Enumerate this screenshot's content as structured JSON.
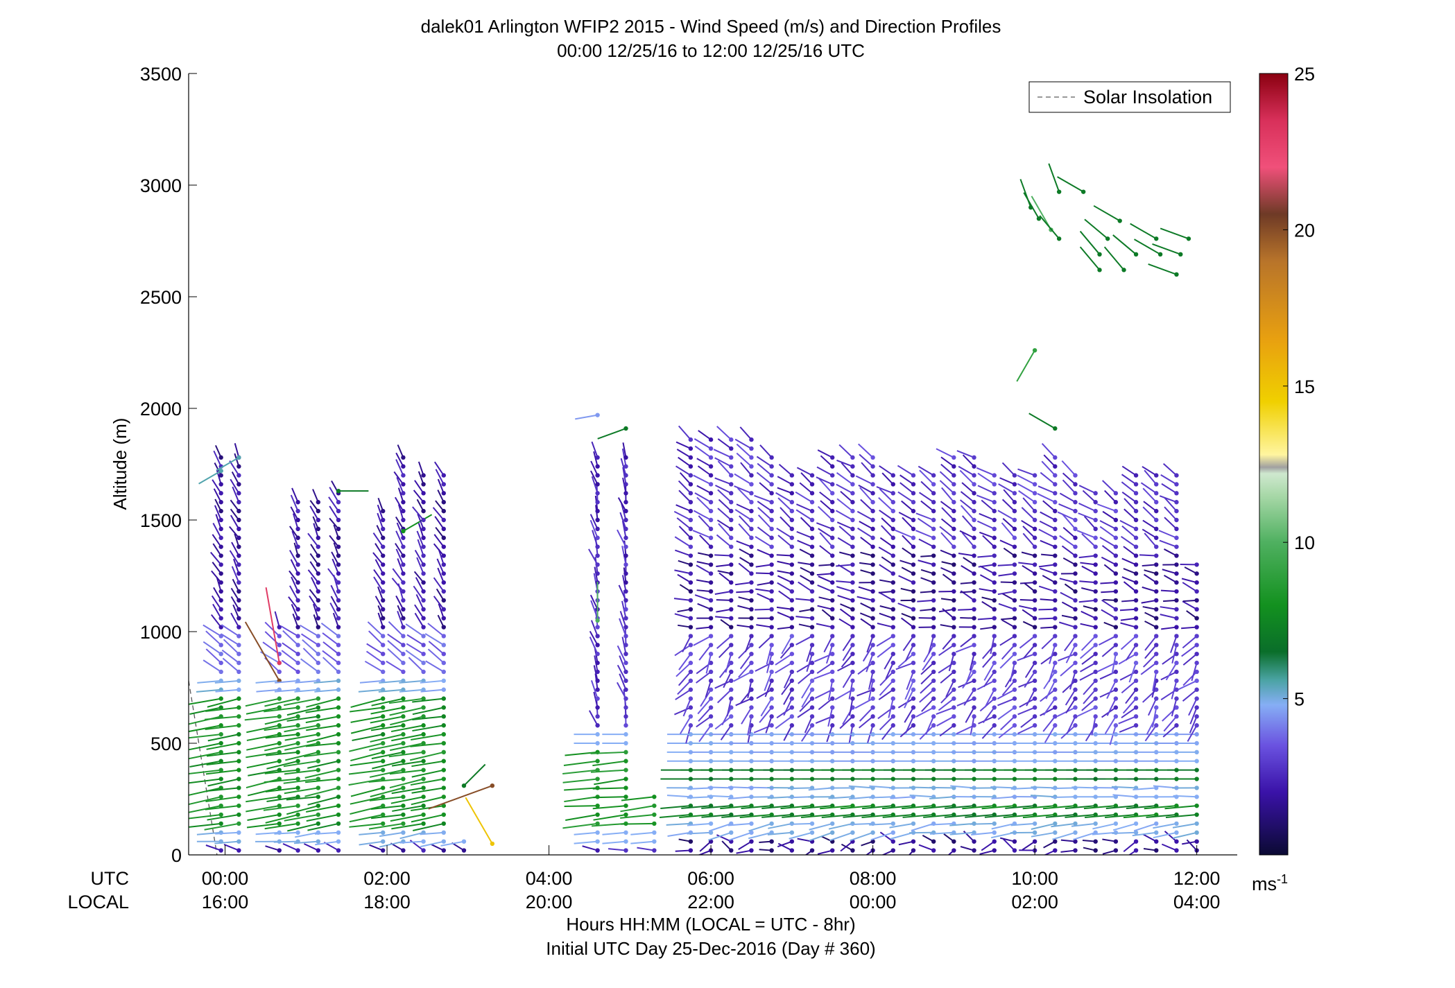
{
  "chart_data": {
    "type": "wind-barb-profile",
    "title": "dalek01 Arlington WFIP2 2015 - Wind Speed (m/s) and Direction Profiles",
    "subtitle": "00:00 12/25/16 to 12:00 12/25/16  UTC",
    "ylabel": "Altitude (m)",
    "xlabel": "Hours HH:MM  (LOCAL = UTC - 8hr)",
    "xlabel2": "Initial UTC Day 25-Dec-2016 (Day # 360)",
    "row_label_utc": "UTC",
    "row_label_local": "LOCAL",
    "xlim_hours": [
      -0.45,
      12.5
    ],
    "ylim": [
      0,
      3500
    ],
    "y_ticks": [
      0,
      500,
      1000,
      1500,
      2000,
      2500,
      3000,
      3500
    ],
    "x_ticks": [
      {
        "hour": 0,
        "utc": "00:00",
        "local": "16:00"
      },
      {
        "hour": 2,
        "utc": "02:00",
        "local": "18:00"
      },
      {
        "hour": 4,
        "utc": "04:00",
        "local": "20:00"
      },
      {
        "hour": 6,
        "utc": "06:00",
        "local": "22:00"
      },
      {
        "hour": 8,
        "utc": "08:00",
        "local": "00:00"
      },
      {
        "hour": 10,
        "utc": "10:00",
        "local": "02:00"
      },
      {
        "hour": 12,
        "utc": "12:00",
        "local": "04:00"
      }
    ],
    "legend": {
      "label": "Solar Insolation",
      "placement": "top-right",
      "line_style": "dashed",
      "color": "#777777"
    },
    "solar_insolation": [
      {
        "hour": -0.45,
        "altitude_m": 780
      },
      {
        "hour": -0.1,
        "altitude_m": 0
      }
    ],
    "colorbar": {
      "min": 0,
      "max": 25,
      "ticks": [
        5,
        10,
        15,
        20,
        25
      ],
      "unit": "ms",
      "unit_exp": "-1",
      "stops": [
        {
          "v": 0,
          "color": "#0b0a33"
        },
        {
          "v": 2,
          "color": "#3a12a8"
        },
        {
          "v": 3.5,
          "color": "#6a52e0"
        },
        {
          "v": 4.8,
          "color": "#86aef5"
        },
        {
          "v": 5.6,
          "color": "#4aa3a3"
        },
        {
          "v": 6.5,
          "color": "#0a6e2a"
        },
        {
          "v": 8,
          "color": "#13911f"
        },
        {
          "v": 10,
          "color": "#4fb060"
        },
        {
          "v": 11.5,
          "color": "#a8d8a8"
        },
        {
          "v": 12.2,
          "color": "#cfe8cf"
        },
        {
          "v": 12.4,
          "color": "#a0a0a0"
        },
        {
          "v": 12.8,
          "color": "#fff5a0"
        },
        {
          "v": 14.5,
          "color": "#f0d000"
        },
        {
          "v": 16.5,
          "color": "#e8a010"
        },
        {
          "v": 19,
          "color": "#b8742a"
        },
        {
          "v": 20.5,
          "color": "#6e3a26"
        },
        {
          "v": 22,
          "color": "#f0507a"
        },
        {
          "v": 23.5,
          "color": "#d8305a"
        },
        {
          "v": 25,
          "color": "#8a0010"
        }
      ]
    },
    "profiles": [
      {
        "hour": -0.05,
        "top": 1780,
        "regime": "early",
        "extra": [
          {
            "alt": 1720,
            "speed": 5.5,
            "dir": 240
          }
        ]
      },
      {
        "hour": 0.17,
        "top": 1780,
        "regime": "early",
        "extra": [
          {
            "alt": 1780,
            "speed": 5.5,
            "dir": 240
          }
        ]
      },
      {
        "hour": 0.67,
        "top": 1020,
        "regime": "early-short",
        "extra": [
          {
            "alt": 780,
            "speed": 20,
            "dir": 330
          },
          {
            "alt": 860,
            "speed": 23,
            "dir": 350
          }
        ]
      },
      {
        "hour": 0.9,
        "top": 1580,
        "regime": "early"
      },
      {
        "hour": 1.15,
        "top": 1600,
        "regime": "early"
      },
      {
        "hour": 1.4,
        "top": 1640,
        "regime": "early",
        "extra": [
          {
            "alt": 1630,
            "speed": 7,
            "dir": 90
          }
        ]
      },
      {
        "hour": 1.95,
        "top": 1560,
        "regime": "early"
      },
      {
        "hour": 2.2,
        "top": 1780,
        "regime": "early",
        "extra": [
          {
            "alt": 1450,
            "speed": 8,
            "dir": 60
          }
        ]
      },
      {
        "hour": 2.45,
        "top": 1700,
        "regime": "early"
      },
      {
        "hour": 2.7,
        "top": 1700,
        "regime": "early"
      },
      {
        "hour": 2.95,
        "top": 60,
        "regime": "low",
        "extra": [
          {
            "alt": 310,
            "speed": 7,
            "dir": 45
          }
        ]
      },
      {
        "hour": 3.3,
        "top": 0,
        "regime": "low",
        "extra": [
          {
            "alt": 310,
            "speed": 20,
            "dir": 250
          },
          {
            "alt": 50,
            "speed": 15,
            "dir": 330
          }
        ]
      },
      {
        "hour": 4.6,
        "top": 1780,
        "regime": "mid",
        "extra": [
          {
            "alt": 1970,
            "speed": 4.5,
            "dir": 260
          },
          {
            "alt": 1050,
            "speed": 10,
            "dir": 0
          }
        ]
      },
      {
        "hour": 4.95,
        "top": 1780,
        "regime": "mid",
        "extra": [
          {
            "alt": 1910,
            "speed": 7,
            "dir": 250
          }
        ]
      },
      {
        "hour": 5.3,
        "top": 280,
        "regime": "mid-short"
      },
      {
        "hour": 5.75,
        "top": 1860,
        "regime": "late"
      },
      {
        "hour": 6.0,
        "top": 1860,
        "regime": "late"
      },
      {
        "hour": 6.25,
        "top": 1860,
        "regime": "late"
      },
      {
        "hour": 6.5,
        "top": 1860,
        "regime": "late"
      },
      {
        "hour": 6.75,
        "top": 1780,
        "regime": "late"
      },
      {
        "hour": 7.0,
        "top": 1700,
        "regime": "late"
      },
      {
        "hour": 7.25,
        "top": 1700,
        "regime": "late"
      },
      {
        "hour": 7.5,
        "top": 1780,
        "regime": "late"
      },
      {
        "hour": 7.75,
        "top": 1780,
        "regime": "late"
      },
      {
        "hour": 8.0,
        "top": 1780,
        "regime": "late"
      },
      {
        "hour": 8.25,
        "top": 1700,
        "regime": "late"
      },
      {
        "hour": 8.5,
        "top": 1700,
        "regime": "late"
      },
      {
        "hour": 8.75,
        "top": 1700,
        "regime": "late"
      },
      {
        "hour": 9.0,
        "top": 1780,
        "regime": "late"
      },
      {
        "hour": 9.25,
        "top": 1780,
        "regime": "late"
      },
      {
        "hour": 9.5,
        "top": 1700,
        "regime": "late"
      },
      {
        "hour": 9.75,
        "top": 1700,
        "regime": "late"
      },
      {
        "hour": 10.0,
        "top": 1700,
        "regime": "late",
        "extra": [
          {
            "alt": 2260,
            "speed": 9,
            "dir": 210
          }
        ]
      },
      {
        "hour": 10.25,
        "top": 1780,
        "regime": "late",
        "extra": [
          {
            "alt": 1910,
            "speed": 7,
            "dir": 300
          }
        ]
      },
      {
        "hour": 10.5,
        "top": 1700,
        "regime": "late"
      },
      {
        "hour": 10.75,
        "top": 1620,
        "regime": "late"
      },
      {
        "hour": 11.0,
        "top": 1620,
        "regime": "late"
      },
      {
        "hour": 11.25,
        "top": 1700,
        "regime": "late"
      },
      {
        "hour": 11.5,
        "top": 1700,
        "regime": "late"
      },
      {
        "hour": 11.75,
        "top": 1700,
        "regime": "late"
      },
      {
        "hour": 12.0,
        "top": 1300,
        "regime": "late-short"
      }
    ],
    "upper_barbs": [
      {
        "hour": 9.95,
        "alt": 2900,
        "speed": 7,
        "dir": 340
      },
      {
        "hour": 10.05,
        "alt": 2850,
        "speed": 7,
        "dir": 330
      },
      {
        "hour": 10.2,
        "alt": 2800,
        "speed": 10,
        "dir": 330
      },
      {
        "hour": 10.3,
        "alt": 2760,
        "speed": 7,
        "dir": 320
      },
      {
        "hour": 10.3,
        "alt": 2970,
        "speed": 7,
        "dir": 340
      },
      {
        "hour": 10.6,
        "alt": 2970,
        "speed": 7,
        "dir": 300
      },
      {
        "hour": 10.8,
        "alt": 2620,
        "speed": 7,
        "dir": 320
      },
      {
        "hour": 10.9,
        "alt": 2760,
        "speed": 7,
        "dir": 310
      },
      {
        "hour": 11.05,
        "alt": 2840,
        "speed": 7,
        "dir": 300
      },
      {
        "hour": 11.1,
        "alt": 2620,
        "speed": 7,
        "dir": 320
      },
      {
        "hour": 11.25,
        "alt": 2690,
        "speed": 7,
        "dir": 310
      },
      {
        "hour": 11.5,
        "alt": 2760,
        "speed": 7,
        "dir": 300
      },
      {
        "hour": 11.55,
        "alt": 2690,
        "speed": 7,
        "dir": 300
      },
      {
        "hour": 11.75,
        "alt": 2600,
        "speed": 7,
        "dir": 290
      },
      {
        "hour": 11.9,
        "alt": 2760,
        "speed": 7,
        "dir": 290
      },
      {
        "hour": 11.8,
        "alt": 2690,
        "speed": 7,
        "dir": 290
      },
      {
        "hour": 10.8,
        "alt": 2690,
        "speed": 7,
        "dir": 320
      }
    ]
  }
}
